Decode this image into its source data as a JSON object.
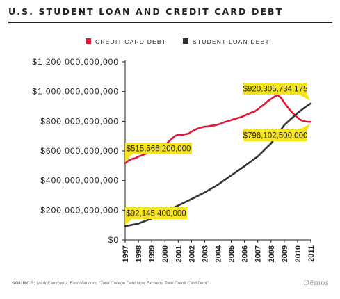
{
  "chart_data": {
    "type": "line",
    "title": "U.S. STUDENT LOAN AND CREDIT CARD DEBT",
    "xlabel": "",
    "ylabel": "",
    "x_ticks": [
      "1997",
      "1998",
      "1999",
      "2000",
      "2001",
      "2002",
      "2003",
      "2004",
      "2005",
      "2006",
      "2007",
      "2008",
      "2009",
      "2010",
      "2011"
    ],
    "y_ticks": [
      "$0",
      "$200,000,000,000",
      "$400,000,000,000",
      "$600,000,000,000",
      "$800,000,000,000",
      "$1,000,000,000,000",
      "$1,200,000,000,000"
    ],
    "xlim": [
      1997,
      2011
    ],
    "ylim": [
      0,
      1200000000000
    ],
    "grid": false,
    "legend": "top-center",
    "series": [
      {
        "name": "CREDIT CARD DEBT",
        "color": "#e31837",
        "points": [
          [
            1997.0,
            515566200000
          ],
          [
            1997.25,
            535000000000
          ],
          [
            1997.5,
            545000000000
          ],
          [
            1997.75,
            550000000000
          ],
          [
            1998.0,
            562000000000
          ],
          [
            1998.25,
            570000000000
          ],
          [
            1998.5,
            578000000000
          ],
          [
            1998.75,
            590000000000
          ],
          [
            1999.0,
            600000000000
          ],
          [
            1999.25,
            610000000000
          ],
          [
            1999.5,
            618000000000
          ],
          [
            1999.75,
            625000000000
          ],
          [
            2000.0,
            640000000000
          ],
          [
            2000.25,
            660000000000
          ],
          [
            2000.5,
            680000000000
          ],
          [
            2000.75,
            700000000000
          ],
          [
            2001.0,
            710000000000
          ],
          [
            2001.25,
            706000000000
          ],
          [
            2001.5,
            712000000000
          ],
          [
            2001.75,
            716000000000
          ],
          [
            2002.0,
            730000000000
          ],
          [
            2002.25,
            742000000000
          ],
          [
            2002.5,
            752000000000
          ],
          [
            2002.75,
            758000000000
          ],
          [
            2003.0,
            764000000000
          ],
          [
            2003.25,
            765000000000
          ],
          [
            2003.5,
            770000000000
          ],
          [
            2003.75,
            772000000000
          ],
          [
            2004.0,
            778000000000
          ],
          [
            2004.25,
            785000000000
          ],
          [
            2004.5,
            795000000000
          ],
          [
            2004.75,
            800000000000
          ],
          [
            2005.0,
            808000000000
          ],
          [
            2005.25,
            815000000000
          ],
          [
            2005.5,
            822000000000
          ],
          [
            2005.75,
            828000000000
          ],
          [
            2006.0,
            838000000000
          ],
          [
            2006.25,
            848000000000
          ],
          [
            2006.5,
            858000000000
          ],
          [
            2006.75,
            865000000000
          ],
          [
            2007.0,
            880000000000
          ],
          [
            2007.25,
            898000000000
          ],
          [
            2007.5,
            915000000000
          ],
          [
            2007.75,
            935000000000
          ],
          [
            2008.0,
            950000000000
          ],
          [
            2008.25,
            965000000000
          ],
          [
            2008.5,
            975000000000
          ],
          [
            2008.75,
            958000000000
          ],
          [
            2009.0,
            925000000000
          ],
          [
            2009.25,
            895000000000
          ],
          [
            2009.5,
            868000000000
          ],
          [
            2009.75,
            845000000000
          ],
          [
            2010.0,
            825000000000
          ],
          [
            2010.25,
            808000000000
          ],
          [
            2010.5,
            800000000000
          ],
          [
            2010.75,
            797000000000
          ],
          [
            2011.0,
            796102500000
          ]
        ]
      },
      {
        "name": "STUDENT LOAN DEBT",
        "color": "#333333",
        "points": [
          [
            1997.0,
            92145400000
          ],
          [
            1998.0,
            110000000000
          ],
          [
            1999.0,
            145000000000
          ],
          [
            2000.0,
            190000000000
          ],
          [
            2001.0,
            232000000000
          ],
          [
            2002.0,
            275000000000
          ],
          [
            2003.0,
            320000000000
          ],
          [
            2004.0,
            372000000000
          ],
          [
            2005.0,
            435000000000
          ],
          [
            2006.0,
            497000000000
          ],
          [
            2007.0,
            563000000000
          ],
          [
            2008.0,
            650000000000
          ],
          [
            2009.0,
            775000000000
          ],
          [
            2009.5,
            815000000000
          ],
          [
            2010.0,
            855000000000
          ],
          [
            2010.5,
            890000000000
          ],
          [
            2011.0,
            920305734175
          ]
        ]
      }
    ],
    "annotations": [
      {
        "text": "$515,566,200,000",
        "x": 1997,
        "y": 515566200000
      },
      {
        "text": "$92,145,400,000",
        "x": 1997,
        "y": 92145400000
      },
      {
        "text": "$920,305,734,175",
        "x": 2011,
        "y": 920305734175
      },
      {
        "text": "$796,102,500,000",
        "x": 2011,
        "y": 796102500000
      }
    ],
    "callout_color": "#f6e51d"
  },
  "source": {
    "label": "SOURCE:",
    "text_author": "Mark Kantrowitz, FastWeb.com, ",
    "text_title": "“Total College Debt Now Exceeds Total Credit Card Debt”"
  },
  "brand": "Dēmos"
}
